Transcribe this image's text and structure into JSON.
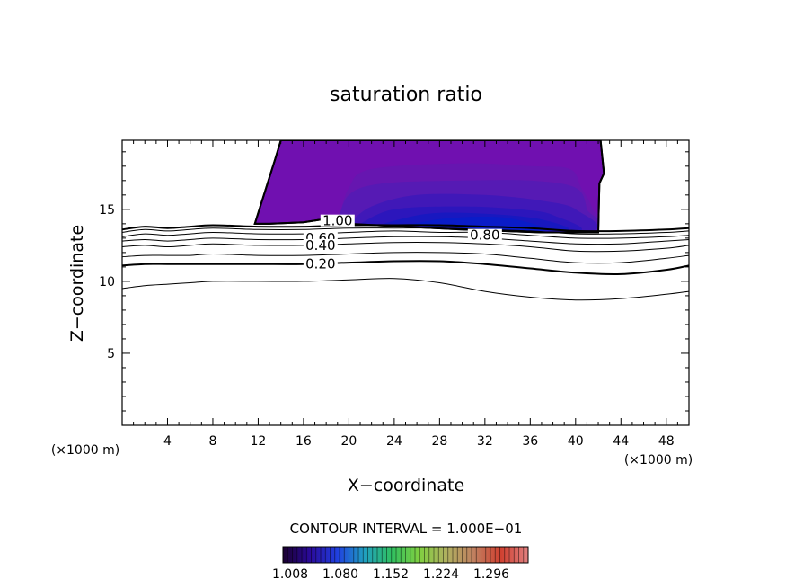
{
  "chart_data": {
    "type": "contour",
    "title": "saturation ratio",
    "xlabel": "X−coordinate",
    "ylabel": "Z−coordinate",
    "x_unit_left": "(×1000 m)",
    "x_unit_right": "(×1000 m)",
    "xlim": [
      0,
      50
    ],
    "ylim": [
      0,
      19.8
    ],
    "xticks": [
      4,
      8,
      12,
      16,
      20,
      24,
      28,
      32,
      36,
      40,
      44,
      48
    ],
    "xtick_labels": [
      "4",
      "8",
      "12",
      "16",
      "20",
      "24",
      "28",
      "32",
      "36",
      "40",
      "44",
      "48"
    ],
    "yticks": [
      5,
      10,
      15
    ],
    "ytick_labels": [
      "5",
      "10",
      "15"
    ],
    "contour_interval_text": "CONTOUR INTERVAL = 1.000E−01",
    "contour_levels": [
      {
        "level": 0.1,
        "label": null,
        "thick": false,
        "x": [
          0,
          2,
          4,
          6,
          8,
          12,
          16,
          20,
          24,
          28,
          32,
          36,
          40,
          44,
          48,
          50
        ],
        "z": [
          9.5,
          9.7,
          9.8,
          9.9,
          10.0,
          10.0,
          10.0,
          10.1,
          10.2,
          9.9,
          9.3,
          8.9,
          8.7,
          8.8,
          9.1,
          9.3
        ]
      },
      {
        "level": 0.2,
        "label": "0.20",
        "thick": true,
        "x": [
          0,
          2,
          4,
          6,
          8,
          12,
          16,
          20,
          24,
          28,
          32,
          36,
          40,
          44,
          48,
          50
        ],
        "z": [
          11.1,
          11.2,
          11.2,
          11.2,
          11.2,
          11.2,
          11.2,
          11.3,
          11.4,
          11.4,
          11.2,
          10.9,
          10.6,
          10.5,
          10.8,
          11.1
        ]
      },
      {
        "level": 0.3,
        "label": null,
        "thick": false,
        "x": [
          0,
          2,
          4,
          6,
          8,
          12,
          16,
          20,
          24,
          28,
          32,
          36,
          40,
          44,
          48,
          50
        ],
        "z": [
          11.7,
          11.8,
          11.8,
          11.8,
          11.9,
          11.8,
          11.8,
          11.9,
          12.0,
          12.0,
          11.9,
          11.6,
          11.3,
          11.3,
          11.6,
          11.8
        ]
      },
      {
        "level": 0.4,
        "label": "0.40",
        "thick": false,
        "x": [
          0,
          2,
          4,
          6,
          8,
          12,
          16,
          20,
          24,
          28,
          32,
          36,
          40,
          44,
          48,
          50
        ],
        "z": [
          12.4,
          12.5,
          12.4,
          12.5,
          12.6,
          12.5,
          12.5,
          12.6,
          12.7,
          12.7,
          12.6,
          12.4,
          12.1,
          12.1,
          12.3,
          12.5
        ]
      },
      {
        "level": 0.5,
        "label": null,
        "thick": false,
        "x": [
          0,
          2,
          4,
          6,
          8,
          12,
          16,
          20,
          24,
          28,
          32,
          36,
          40,
          44,
          48,
          50
        ],
        "z": [
          12.8,
          12.9,
          12.8,
          12.9,
          13.0,
          12.9,
          12.9,
          13.0,
          13.1,
          13.1,
          13.0,
          12.8,
          12.6,
          12.6,
          12.8,
          12.9
        ]
      },
      {
        "level": 0.6,
        "label": "0.60",
        "thick": false,
        "x": [
          0,
          2,
          4,
          6,
          8,
          12,
          16,
          20,
          24,
          28,
          32,
          36,
          40,
          44,
          48,
          50
        ],
        "z": [
          13.1,
          13.3,
          13.2,
          13.3,
          13.4,
          13.3,
          13.3,
          13.4,
          13.5,
          13.4,
          13.4,
          13.2,
          13.0,
          13.0,
          13.1,
          13.2
        ]
      },
      {
        "level": 0.8,
        "label": "0.80",
        "thick": false,
        "x": [
          0,
          2,
          4,
          6,
          8,
          12,
          16,
          20,
          24,
          28,
          32,
          36,
          40,
          44,
          48,
          50
        ],
        "z": [
          13.4,
          13.6,
          13.5,
          13.6,
          13.7,
          13.6,
          13.6,
          13.7,
          13.7,
          13.7,
          13.6,
          13.5,
          13.3,
          13.3,
          13.4,
          13.5
        ]
      },
      {
        "level": 1.0,
        "label": "1.00",
        "thick": true,
        "x": [
          0,
          2,
          4,
          6,
          8,
          12,
          16,
          20,
          24,
          28,
          32,
          36,
          40,
          44,
          48,
          50
        ],
        "z": [
          13.6,
          13.8,
          13.7,
          13.8,
          13.9,
          13.8,
          13.8,
          13.9,
          13.9,
          13.9,
          13.8,
          13.7,
          13.5,
          13.5,
          13.6,
          13.7
        ]
      }
    ],
    "contour_labels": [
      {
        "text": "1.00",
        "x": 19.0,
        "z": 14.2
      },
      {
        "text": "0.60",
        "x": 17.5,
        "z": 13.0
      },
      {
        "text": "0.40",
        "x": 17.5,
        "z": 12.5
      },
      {
        "text": "0.80",
        "x": 32.0,
        "z": 13.2
      },
      {
        "text": "0.20",
        "x": 17.5,
        "z": 11.2
      }
    ],
    "cloud_region": {
      "outline_x": [
        11.7,
        12.5,
        13.5,
        14.0,
        42.2,
        42.5,
        42.1,
        42.0,
        41.2,
        37.0,
        30.0,
        25.0,
        20.0,
        18.2,
        17.6,
        16.0,
        13.0,
        11.7
      ],
      "outline_z": [
        14.0,
        16.0,
        18.5,
        19.8,
        19.8,
        17.5,
        16.8,
        13.4,
        13.4,
        13.4,
        13.6,
        13.8,
        14.0,
        14.2,
        14.3,
        14.1,
        14.0,
        14.0
      ],
      "base_color": "#7010b0",
      "shades": [
        {
          "color": "#6616b0",
          "x": [
            19.0,
            20.0,
            22.0,
            30.0,
            36.0,
            39.5,
            40.5,
            41.5,
            41.5,
            19.0
          ],
          "z": [
            14.0,
            16.5,
            17.8,
            18.2,
            18.0,
            17.8,
            16.5,
            15.0,
            13.4,
            14.0
          ]
        },
        {
          "color": "#561ab4",
          "x": [
            19.0,
            20.0,
            23.0,
            30.0,
            36.0,
            40.0,
            41.0,
            41.0,
            19.0
          ],
          "z": [
            14.0,
            16.0,
            16.8,
            17.0,
            17.0,
            16.5,
            15.0,
            13.4,
            14.0
          ]
        },
        {
          "color": "#4018b8",
          "x": [
            20.0,
            22.0,
            26.0,
            32.0,
            37.0,
            40.0,
            40.5,
            20.0
          ],
          "z": [
            14.0,
            15.2,
            16.0,
            16.0,
            15.6,
            15.0,
            13.4,
            14.0
          ]
        },
        {
          "color": "#2c16bc",
          "x": [
            21.0,
            24.0,
            30.0,
            35.0,
            38.0,
            39.5,
            21.0
          ],
          "z": [
            14.0,
            15.0,
            15.2,
            15.0,
            14.6,
            13.4,
            14.0
          ]
        },
        {
          "color": "#1818c0",
          "x": [
            23.0,
            27.0,
            32.0,
            37.0,
            38.5,
            23.0
          ],
          "z": [
            14.0,
            14.7,
            14.7,
            14.3,
            13.5,
            14.0
          ]
        },
        {
          "color": "#0a1cc8",
          "x": [
            25.0,
            29.0,
            34.0,
            37.0,
            25.0
          ],
          "z": [
            13.9,
            14.4,
            14.4,
            13.5,
            13.9
          ]
        }
      ]
    },
    "colorbar": {
      "tick_labels": [
        "1.008",
        "1.080",
        "1.152",
        "1.224",
        "1.296"
      ],
      "stops": [
        "#1a0030",
        "#2a0a9a",
        "#2040e0",
        "#20a0c0",
        "#30c060",
        "#80d040",
        "#b0b060",
        "#c08060",
        "#d04030",
        "#e08080"
      ],
      "ticks": 52
    }
  }
}
